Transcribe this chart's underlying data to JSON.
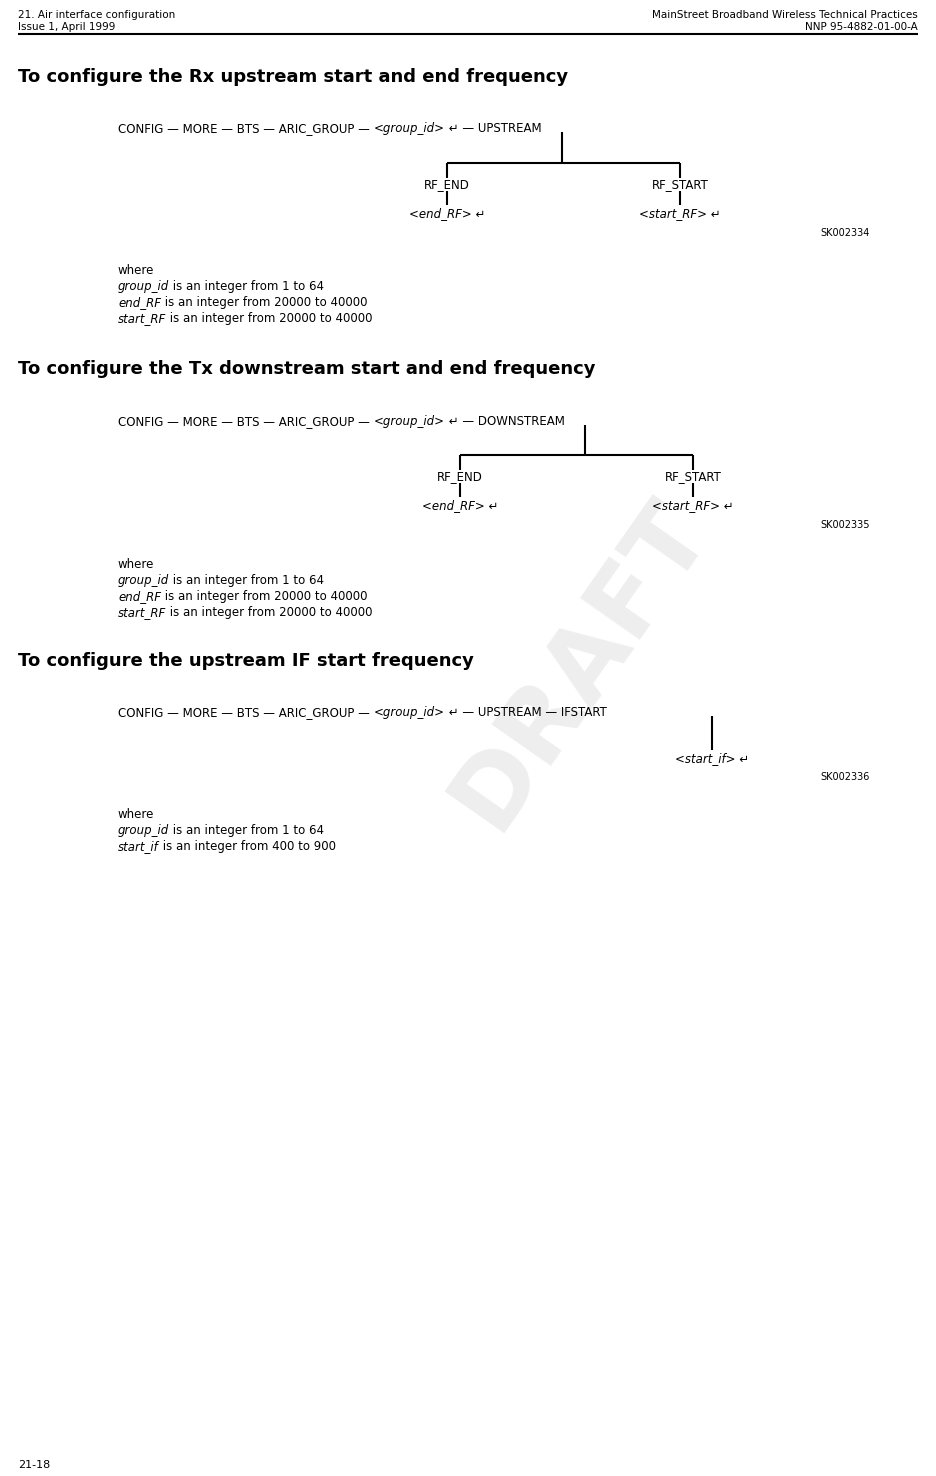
{
  "page_width": 9.36,
  "page_height": 14.76,
  "bg_color": "#ffffff",
  "header_left_line1": "21. Air interface configuration",
  "header_left_line2": "Issue 1, April 1999",
  "header_right_line1": "MainStreet Broadband Wireless Technical Practices",
  "header_right_line2": "NNP 95-4882-01-00-A",
  "footer_left": "21-18",
  "draft_watermark": "DRAFT",
  "section1_title": "To configure the Rx upstream start and end frequency",
  "section1_sk": "SK002334",
  "section1_rf_end_label": "RF_END",
  "section1_rf_start_label": "RF_START",
  "section1_end_rf_val": "<end_RF> ↵",
  "section1_start_rf_val": "<start_RF> ↵",
  "section1_where": "where",
  "section2_title": "To configure the Tx downstream start and end frequency",
  "section2_sk": "SK002335",
  "section2_rf_end_label": "RF_END",
  "section2_rf_start_label": "RF_START",
  "section2_end_rf_val": "<end_RF> ↵",
  "section2_start_rf_val": "<start_RF> ↵",
  "section2_where": "where",
  "section3_title": "To configure the upstream IF start frequency",
  "section3_sk": "SK002336",
  "section3_start_if_val": "<start_if> ↵",
  "section3_where": "where",
  "cmd1_parts": [
    [
      "CONFIG — MORE — BTS — ARIC_GROUP — ",
      "normal"
    ],
    [
      "<group_id>",
      "italic"
    ],
    [
      " ↵ — UPSTREAM",
      "normal"
    ]
  ],
  "cmd2_parts": [
    [
      "CONFIG — MORE — BTS — ARIC_GROUP — ",
      "normal"
    ],
    [
      "<group_id>",
      "italic"
    ],
    [
      " ↵ — DOWNSTREAM",
      "normal"
    ]
  ],
  "cmd3_parts": [
    [
      "CONFIG — MORE — BTS — ARIC_GROUP — ",
      "normal"
    ],
    [
      "<group_id>",
      "italic"
    ],
    [
      " ↵ — UPSTREAM — IFSTART",
      "normal"
    ]
  ],
  "desc_group_id": [
    "group_id",
    " is an integer from 1 to 64"
  ],
  "desc_end_RF": [
    "end_RF",
    " is an integer from 20000 to 40000"
  ],
  "desc_start_RF": [
    "start_RF",
    " is an integer from 20000 to 40000"
  ],
  "desc_start_if": [
    "start_if",
    " is an integer from 400 to 900"
  ],
  "header_fontsize": 7.5,
  "title_fontsize": 13,
  "cmd_fontsize": 8.5,
  "body_fontsize": 8.5,
  "sk_fontsize": 7,
  "footer_fontsize": 8
}
